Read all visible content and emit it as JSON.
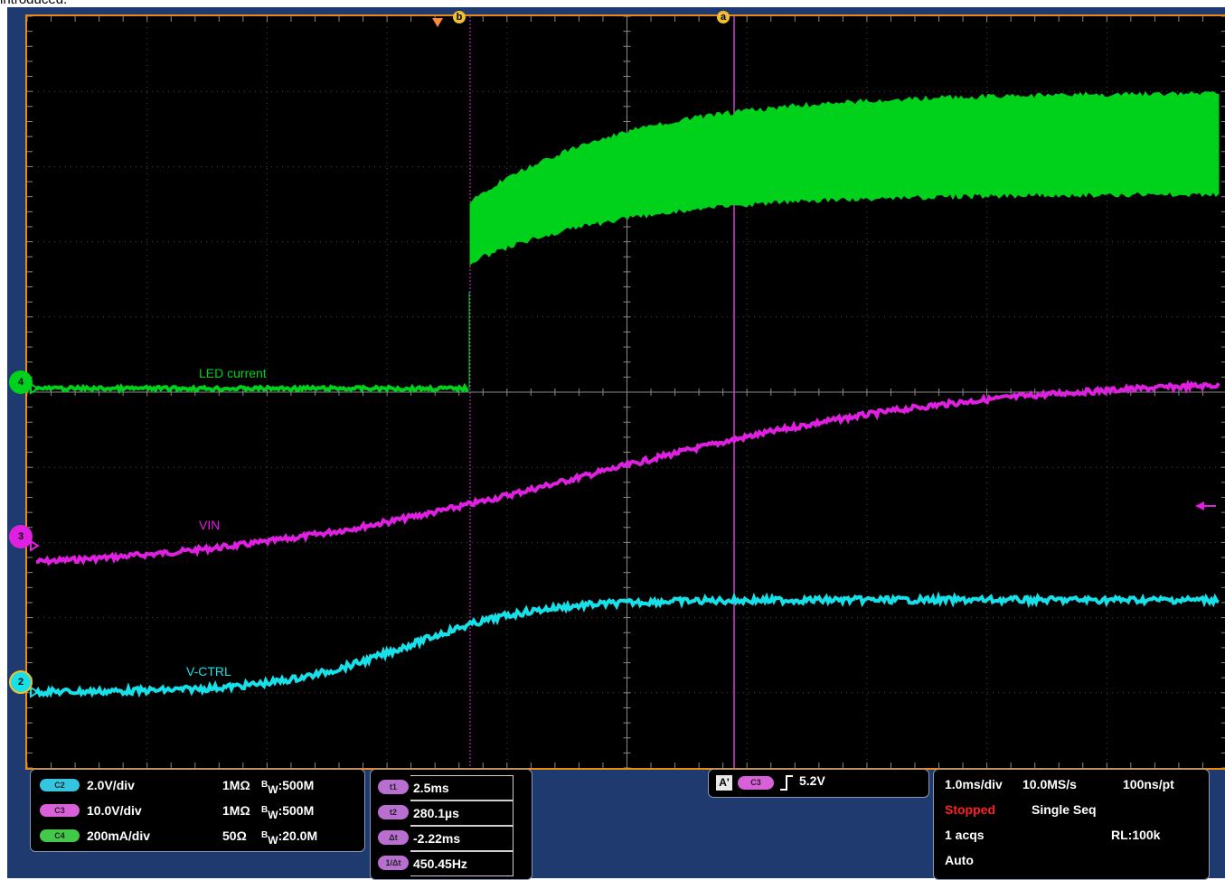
{
  "caption": "introduced.",
  "markers": {
    "b": "b",
    "a": "a"
  },
  "traces": [
    {
      "label": "LED current",
      "channel": "4",
      "color": "#00d11a"
    },
    {
      "label": "VIN",
      "channel": "3",
      "color": "#e020e0"
    },
    {
      "label": "V-CTRL",
      "channel": "2",
      "color": "#18e0e8"
    }
  ],
  "channels": [
    {
      "name": "C2",
      "scale": "2.0V/div",
      "impedance": "1MΩ",
      "bw_sym": "B",
      "bw_sub": "W",
      "bw_value": ":500M",
      "color": "#36c5e0"
    },
    {
      "name": "C3",
      "scale": "10.0V/div",
      "impedance": "1MΩ",
      "bw_sym": "B",
      "bw_sub": "W",
      "bw_value": ":500M",
      "color": "#d860d8"
    },
    {
      "name": "C4",
      "scale": "200mA/div",
      "impedance": "50Ω",
      "bw_sym": "B",
      "bw_sub": "W",
      "bw_value": ":20.0M",
      "color": "#44c84a"
    }
  ],
  "cursors": [
    {
      "label": "t1",
      "value": "2.5ms"
    },
    {
      "label": "t2",
      "value": "280.1µs"
    },
    {
      "label": "Δt",
      "value": "-2.22ms"
    },
    {
      "label": "1/Δt",
      "value": "450.45Hz"
    }
  ],
  "trigger": {
    "mode": "A'",
    "source": "C3",
    "level": "5.2V"
  },
  "acquisition": {
    "timebase": "1.0ms/div",
    "sample_rate": "10.0MS/s",
    "resolution": "100ns/pt",
    "state": "Stopped",
    "seq": "Single Seq",
    "acqs": "1 acqs",
    "record_length": "RL:100k",
    "trigger_mode": "Auto",
    "state_color": "#ff2020"
  }
}
